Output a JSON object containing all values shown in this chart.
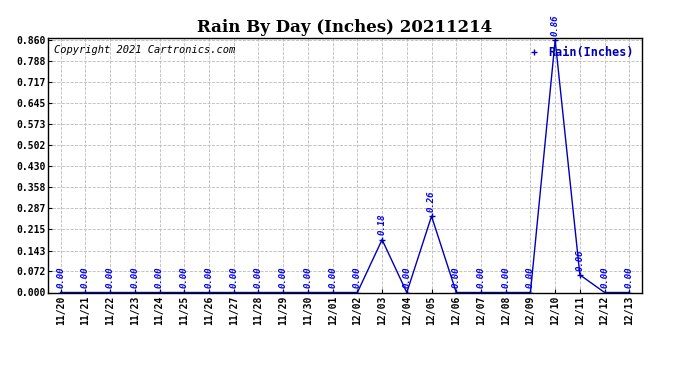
{
  "title": "Rain By Day (Inches) 20211214",
  "copyright": "Copyright 2021 Cartronics.com",
  "legend_label": "Rain(Inches)",
  "dates": [
    "11/20",
    "11/21",
    "11/22",
    "11/23",
    "11/24",
    "11/25",
    "11/26",
    "11/27",
    "11/28",
    "11/29",
    "11/30",
    "12/01",
    "12/02",
    "12/03",
    "12/04",
    "12/05",
    "12/06",
    "12/07",
    "12/08",
    "12/09",
    "12/10",
    "12/11",
    "12/12",
    "12/13"
  ],
  "values": [
    0.0,
    0.0,
    0.0,
    0.0,
    0.0,
    0.0,
    0.0,
    0.0,
    0.0,
    0.0,
    0.0,
    0.0,
    0.0,
    0.18,
    0.0,
    0.26,
    0.0,
    0.0,
    0.0,
    0.0,
    0.86,
    0.06,
    0.0,
    0.0
  ],
  "ylim": [
    0.0,
    0.86
  ],
  "yticks": [
    0.0,
    0.072,
    0.143,
    0.215,
    0.287,
    0.358,
    0.43,
    0.502,
    0.573,
    0.645,
    0.717,
    0.788,
    0.86
  ],
  "line_color": "#0000bb",
  "marker_color": "#0000bb",
  "annotation_color": "#0000ee",
  "grid_color": "#bbbbbb",
  "bg_color": "#ffffff",
  "title_fontsize": 12,
  "copyright_fontsize": 7.5,
  "tick_fontsize": 7,
  "annotation_fontsize": 6.5,
  "legend_fontsize": 8.5,
  "figwidth": 6.9,
  "figheight": 3.75,
  "dpi": 100
}
